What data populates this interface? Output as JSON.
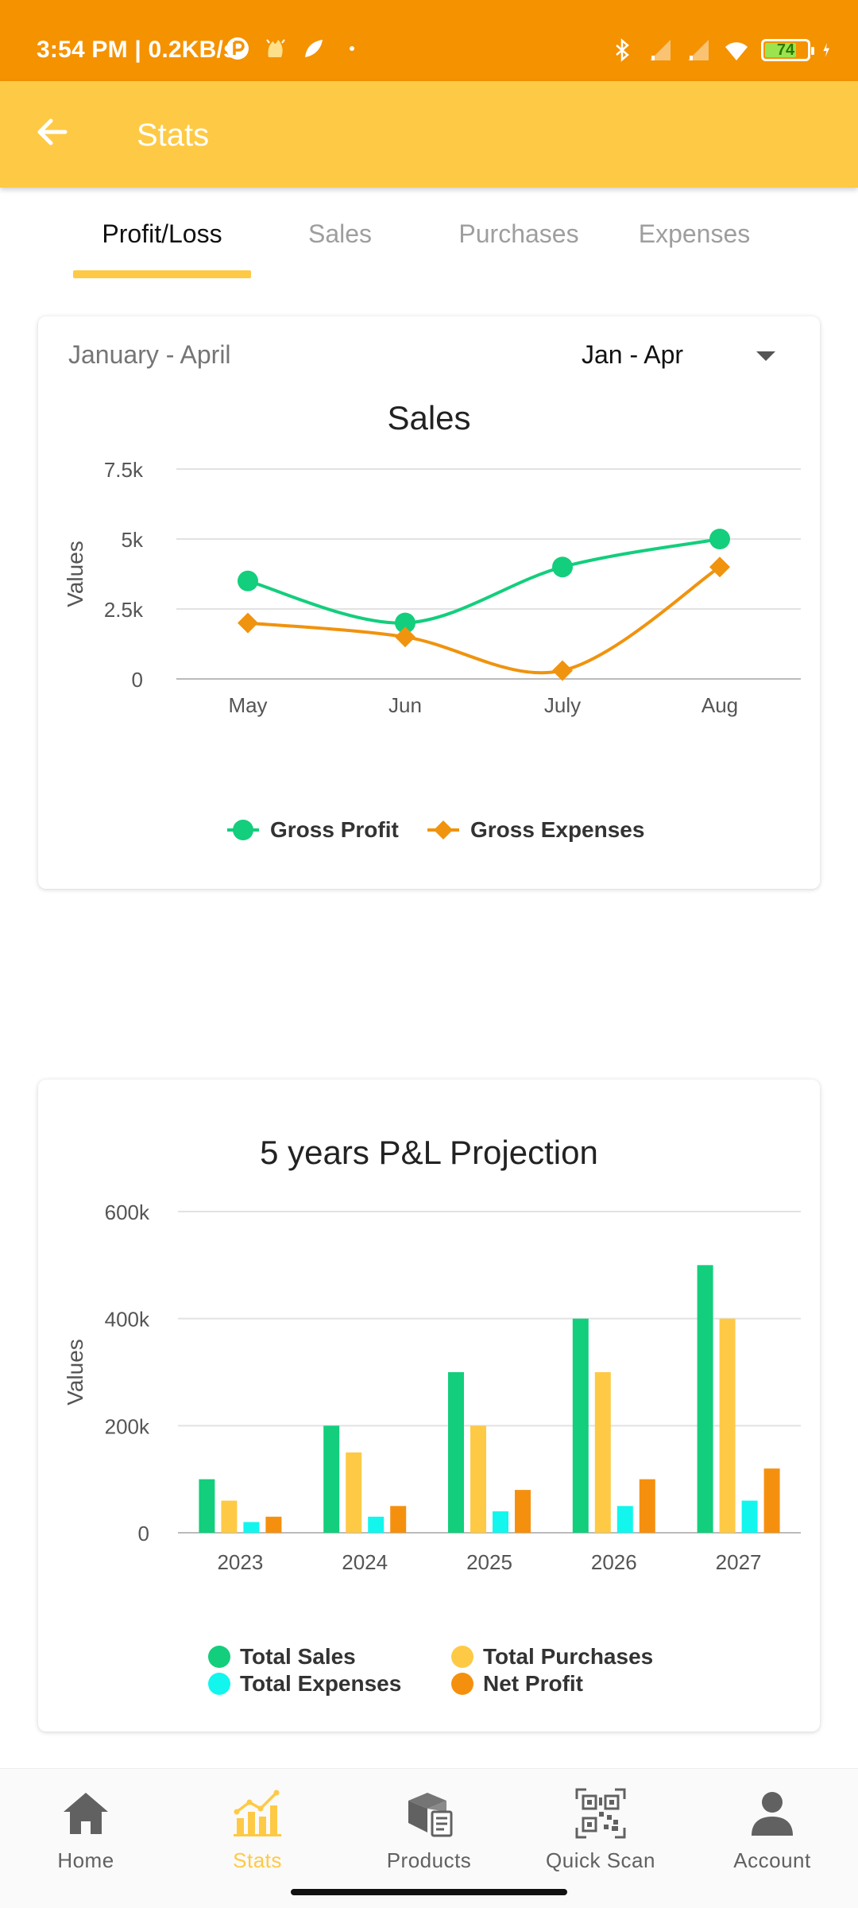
{
  "status_bar": {
    "time": "3:54 PM | 0.2KB/s",
    "battery": "74",
    "icons": [
      "p-icon",
      "wave-icon",
      "leaf-icon",
      "dot-icon",
      "bluetooth-icon",
      "signal-icon",
      "signal-icon",
      "wifi-icon",
      "battery-icon",
      "charging-icon"
    ]
  },
  "app_bar": {
    "title": "Stats",
    "back_icon": "arrow-left-icon"
  },
  "tabs": [
    {
      "label": "Profit/Loss",
      "active": true
    },
    {
      "label": "Sales",
      "active": false
    },
    {
      "label": "Purchases",
      "active": false
    },
    {
      "label": "Expenses",
      "active": false
    }
  ],
  "card1": {
    "range_label": "January - April",
    "dropdown": {
      "selected": "Jan - Apr"
    }
  },
  "card2": {},
  "chart_data": [
    {
      "type": "line",
      "title": "Sales",
      "ylabel": "Values",
      "xlabel": "",
      "categories": [
        "May",
        "Jun",
        "July",
        "Aug"
      ],
      "yticks": [
        "0",
        "2.5k",
        "5k",
        "7.5k"
      ],
      "ylim": [
        0,
        7500
      ],
      "grid": true,
      "legend_position": "bottom",
      "series": [
        {
          "name": "Gross Profit",
          "values": [
            3500,
            2000,
            4000,
            5000
          ],
          "color": "#13CE7C",
          "marker": "circle"
        },
        {
          "name": "Gross Expenses",
          "values": [
            2000,
            1500,
            300,
            4000
          ],
          "color": "#F0930E",
          "marker": "diamond"
        }
      ]
    },
    {
      "type": "bar",
      "title": "5 years P&L Projection",
      "ylabel": "Values",
      "xlabel": "",
      "categories": [
        "2023",
        "2024",
        "2025",
        "2026",
        "2027"
      ],
      "yticks": [
        "0",
        "200k",
        "400k",
        "600k"
      ],
      "ylim": [
        0,
        600000
      ],
      "grid": true,
      "legend_position": "bottom",
      "series": [
        {
          "name": "Total Sales",
          "values": [
            100000,
            200000,
            300000,
            400000,
            500000
          ],
          "color": "#13CE7C"
        },
        {
          "name": "Total Purchases",
          "values": [
            60000,
            150000,
            200000,
            300000,
            400000
          ],
          "color": "#FECA45"
        },
        {
          "name": "Total Expenses",
          "values": [
            20000,
            30000,
            40000,
            50000,
            60000
          ],
          "color": "#12F6EE"
        },
        {
          "name": "Net Profit",
          "values": [
            30000,
            50000,
            80000,
            100000,
            120000
          ],
          "color": "#F5900F"
        }
      ]
    }
  ],
  "bottom_nav": [
    {
      "label": "Home",
      "icon": "home-icon",
      "active": false
    },
    {
      "label": "Stats",
      "icon": "chart-icon",
      "active": true
    },
    {
      "label": "Products",
      "icon": "box-icon",
      "active": false
    },
    {
      "label": "Quick Scan",
      "icon": "qr-code-icon",
      "active": false
    },
    {
      "label": "Account",
      "icon": "account-icon",
      "active": false
    }
  ],
  "colors": {
    "status_bar": "#F59200",
    "app_bar": "#FECA45",
    "accent": "#FECA45"
  }
}
